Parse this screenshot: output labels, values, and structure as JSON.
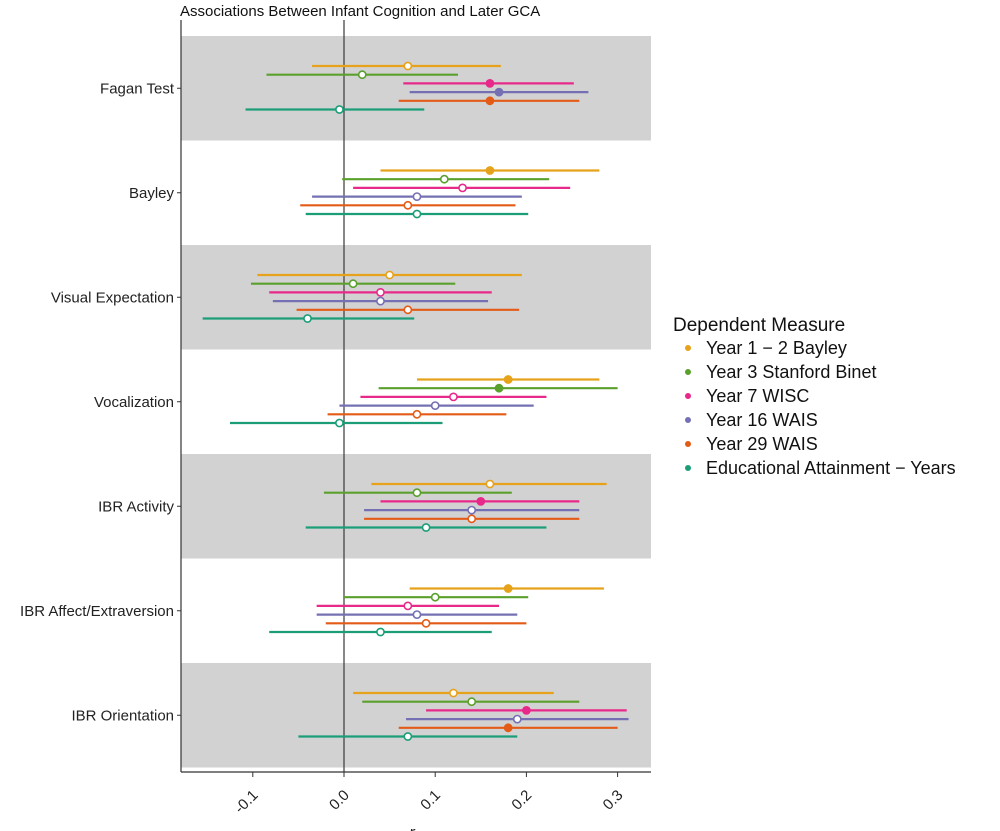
{
  "chart_data": {
    "type": "forest",
    "title": "Associations Between Infant Cognition and Later GCA",
    "xlabel": "r",
    "ylabel": "",
    "xlim": [
      -0.18,
      0.34
    ],
    "xticks": [
      -0.1,
      0.0,
      0.1,
      0.2,
      0.3
    ],
    "xtick_labels": [
      "-0.1",
      "0.0",
      "0.1",
      "0.2",
      "0.3"
    ],
    "reference_line": 0.0,
    "banded_background": true,
    "legend_position": "right",
    "legend_title": "Dependent Measure",
    "series": [
      {
        "name": "Year 1 − 2 Bayley",
        "color": "#E6A21B"
      },
      {
        "name": "Year 3 Stanford Binet",
        "color": "#5AA02C"
      },
      {
        "name": "Year 7 WISC",
        "color": "#E7298A"
      },
      {
        "name": "Year 16 WAIS",
        "color": "#7570B3"
      },
      {
        "name": "Year 29 WAIS",
        "color": "#E35B16"
      },
      {
        "name": "Educational Attainment − Years",
        "color": "#1B9E77"
      }
    ],
    "categories": [
      {
        "name": "Fagan Test",
        "estimates": [
          {
            "series": 0,
            "r": 0.07,
            "lo": -0.035,
            "hi": 0.172,
            "significant": false
          },
          {
            "series": 1,
            "r": 0.02,
            "lo": -0.085,
            "hi": 0.125,
            "significant": false
          },
          {
            "series": 2,
            "r": 0.16,
            "lo": 0.065,
            "hi": 0.252,
            "significant": true
          },
          {
            "series": 3,
            "r": 0.17,
            "lo": 0.072,
            "hi": 0.268,
            "significant": true
          },
          {
            "series": 4,
            "r": 0.16,
            "lo": 0.06,
            "hi": 0.258,
            "significant": true
          },
          {
            "series": 5,
            "r": -0.005,
            "lo": -0.108,
            "hi": 0.088,
            "significant": false
          }
        ]
      },
      {
        "name": "Bayley",
        "estimates": [
          {
            "series": 0,
            "r": 0.16,
            "lo": 0.04,
            "hi": 0.28,
            "significant": true
          },
          {
            "series": 1,
            "r": 0.11,
            "lo": -0.002,
            "hi": 0.225,
            "significant": false
          },
          {
            "series": 2,
            "r": 0.13,
            "lo": 0.01,
            "hi": 0.248,
            "significant": false
          },
          {
            "series": 3,
            "r": 0.08,
            "lo": -0.035,
            "hi": 0.195,
            "significant": false
          },
          {
            "series": 4,
            "r": 0.07,
            "lo": -0.048,
            "hi": 0.188,
            "significant": false
          },
          {
            "series": 5,
            "r": 0.08,
            "lo": -0.042,
            "hi": 0.202,
            "significant": false
          }
        ]
      },
      {
        "name": "Visual Expectation",
        "estimates": [
          {
            "series": 0,
            "r": 0.05,
            "lo": -0.095,
            "hi": 0.195,
            "significant": false
          },
          {
            "series": 1,
            "r": 0.01,
            "lo": -0.102,
            "hi": 0.122,
            "significant": false
          },
          {
            "series": 2,
            "r": 0.04,
            "lo": -0.082,
            "hi": 0.162,
            "significant": false
          },
          {
            "series": 3,
            "r": 0.04,
            "lo": -0.078,
            "hi": 0.158,
            "significant": false
          },
          {
            "series": 4,
            "r": 0.07,
            "lo": -0.052,
            "hi": 0.192,
            "significant": false
          },
          {
            "series": 5,
            "r": -0.04,
            "lo": -0.155,
            "hi": 0.077,
            "significant": false
          }
        ]
      },
      {
        "name": "Vocalization",
        "estimates": [
          {
            "series": 0,
            "r": 0.18,
            "lo": 0.08,
            "hi": 0.28,
            "significant": true
          },
          {
            "series": 1,
            "r": 0.17,
            "lo": 0.038,
            "hi": 0.3,
            "significant": true
          },
          {
            "series": 2,
            "r": 0.12,
            "lo": 0.018,
            "hi": 0.222,
            "significant": false
          },
          {
            "series": 3,
            "r": 0.1,
            "lo": -0.005,
            "hi": 0.208,
            "significant": false
          },
          {
            "series": 4,
            "r": 0.08,
            "lo": -0.018,
            "hi": 0.178,
            "significant": false
          },
          {
            "series": 5,
            "r": -0.005,
            "lo": -0.125,
            "hi": 0.108,
            "significant": false
          }
        ]
      },
      {
        "name": "IBR Activity",
        "estimates": [
          {
            "series": 0,
            "r": 0.16,
            "lo": 0.03,
            "hi": 0.288,
            "significant": false
          },
          {
            "series": 1,
            "r": 0.08,
            "lo": -0.022,
            "hi": 0.184,
            "significant": false
          },
          {
            "series": 2,
            "r": 0.15,
            "lo": 0.04,
            "hi": 0.258,
            "significant": true
          },
          {
            "series": 3,
            "r": 0.14,
            "lo": 0.022,
            "hi": 0.258,
            "significant": false
          },
          {
            "series": 4,
            "r": 0.14,
            "lo": 0.022,
            "hi": 0.258,
            "significant": false
          },
          {
            "series": 5,
            "r": 0.09,
            "lo": -0.042,
            "hi": 0.222,
            "significant": false
          }
        ]
      },
      {
        "name": "IBR Affect/Extraversion",
        "estimates": [
          {
            "series": 0,
            "r": 0.18,
            "lo": 0.072,
            "hi": 0.285,
            "significant": true
          },
          {
            "series": 1,
            "r": 0.1,
            "lo": 0.0,
            "hi": 0.202,
            "significant": false
          },
          {
            "series": 2,
            "r": 0.07,
            "lo": -0.03,
            "hi": 0.17,
            "significant": false
          },
          {
            "series": 3,
            "r": 0.08,
            "lo": -0.03,
            "hi": 0.19,
            "significant": false
          },
          {
            "series": 4,
            "r": 0.09,
            "lo": -0.02,
            "hi": 0.2,
            "significant": false
          },
          {
            "series": 5,
            "r": 0.04,
            "lo": -0.082,
            "hi": 0.162,
            "significant": false
          }
        ]
      },
      {
        "name": "IBR Orientation",
        "estimates": [
          {
            "series": 0,
            "r": 0.12,
            "lo": 0.01,
            "hi": 0.23,
            "significant": false
          },
          {
            "series": 1,
            "r": 0.14,
            "lo": 0.02,
            "hi": 0.258,
            "significant": false
          },
          {
            "series": 2,
            "r": 0.2,
            "lo": 0.09,
            "hi": 0.31,
            "significant": true
          },
          {
            "series": 3,
            "r": 0.19,
            "lo": 0.068,
            "hi": 0.312,
            "significant": false
          },
          {
            "series": 4,
            "r": 0.18,
            "lo": 0.06,
            "hi": 0.3,
            "significant": true
          },
          {
            "series": 5,
            "r": 0.07,
            "lo": -0.05,
            "hi": 0.19,
            "significant": false
          }
        ]
      }
    ]
  }
}
